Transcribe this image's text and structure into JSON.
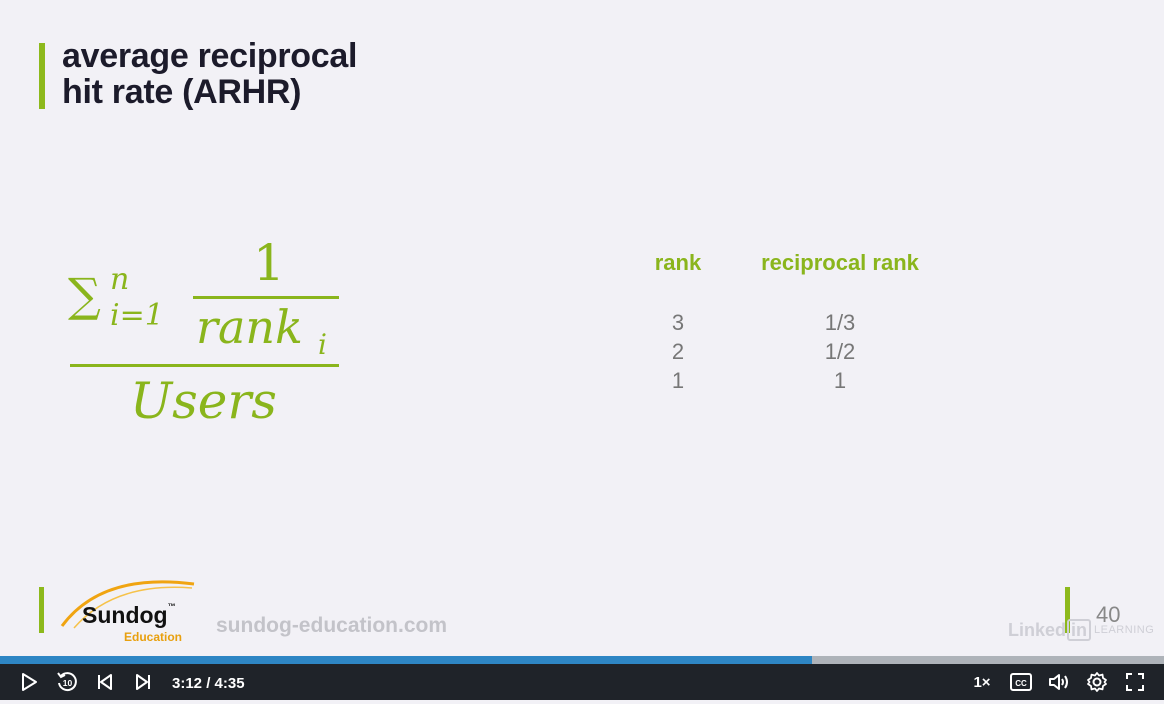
{
  "slide": {
    "title_lines": [
      "average reciprocal",
      "hit rate (ARHR)"
    ],
    "formula": {
      "sum_symbol": "∑",
      "upper": "n",
      "lower": "i=1",
      "numerator": "1",
      "rank_text": "rank",
      "rank_sub": "i",
      "denominator": "Users"
    },
    "table": {
      "headers": [
        "rank",
        "reciprocal rank"
      ],
      "rows": [
        [
          "3",
          "1/3"
        ],
        [
          "2",
          "1/2"
        ],
        [
          "1",
          "1"
        ]
      ]
    },
    "footer": {
      "brand": "Sundog",
      "brand_tm": "™",
      "brand_sub": "Education",
      "url": "sundog-education.com",
      "slide_number": "40",
      "linkedin_text": "Linked",
      "linkedin_in": "in",
      "linkedin_learning": "LEARNING"
    }
  },
  "player": {
    "time_display": "3:12 / 4:35",
    "progress": 0.698,
    "speed": "1×",
    "skip_back_seconds": "10",
    "icons": [
      "play-icon",
      "rewind-10-icon",
      "previous-icon",
      "next-icon",
      "captions-icon",
      "volume-icon",
      "settings-icon",
      "fullscreen-icon"
    ],
    "accent_color": "#2e86c4"
  }
}
